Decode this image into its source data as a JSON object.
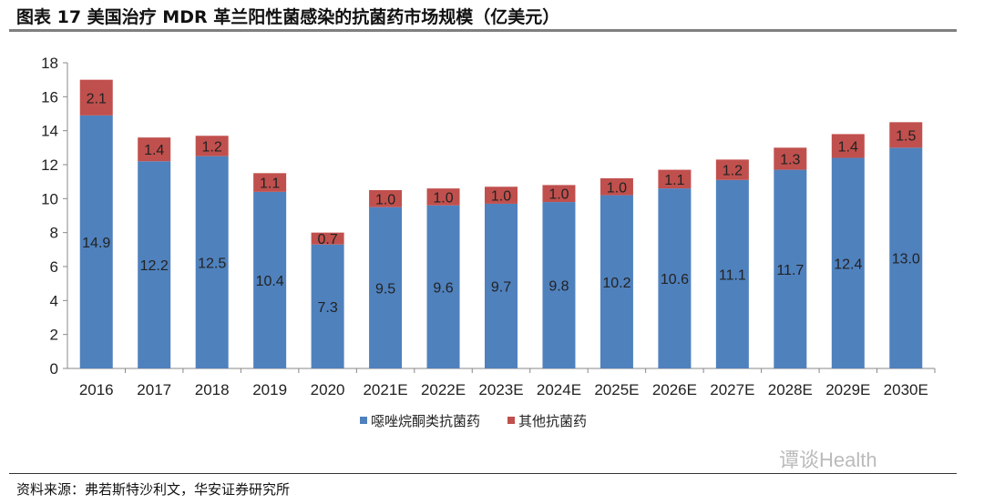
{
  "header": {
    "title": "图表 17 美国治疗 MDR 革兰阳性菌感染的抗菌药市场规模（亿美元）"
  },
  "footer": {
    "source": "资料来源：弗若斯特沙利文，华安证券研究所",
    "watermark": "谭谈Health"
  },
  "chart_data": {
    "type": "bar",
    "stacked": true,
    "title": "美国治疗 MDR 革兰阳性菌感染的抗菌药市场规模（亿美元）",
    "categories": [
      "2016",
      "2017",
      "2018",
      "2019",
      "2020",
      "2021E",
      "2022E",
      "2023E",
      "2024E",
      "2025E",
      "2026E",
      "2027E",
      "2028E",
      "2029E",
      "2030E"
    ],
    "series": [
      {
        "name": "噁唑烷酮类抗菌药",
        "color": "#4F81BD",
        "values": [
          14.9,
          12.2,
          12.5,
          10.4,
          7.3,
          9.5,
          9.6,
          9.7,
          9.8,
          10.2,
          10.6,
          11.1,
          11.7,
          12.4,
          13.0
        ]
      },
      {
        "name": "其他抗菌药",
        "color": "#C0504D",
        "values": [
          2.1,
          1.4,
          1.2,
          1.1,
          0.7,
          1.0,
          1.0,
          1.0,
          1.0,
          1.0,
          1.1,
          1.2,
          1.3,
          1.4,
          1.5
        ]
      }
    ],
    "yticks": [
      "0",
      "2",
      "4",
      "6",
      "8",
      "10",
      "12",
      "14",
      "16",
      "18"
    ],
    "ylim": [
      0,
      18
    ],
    "legend": "bottom",
    "grid": false
  }
}
